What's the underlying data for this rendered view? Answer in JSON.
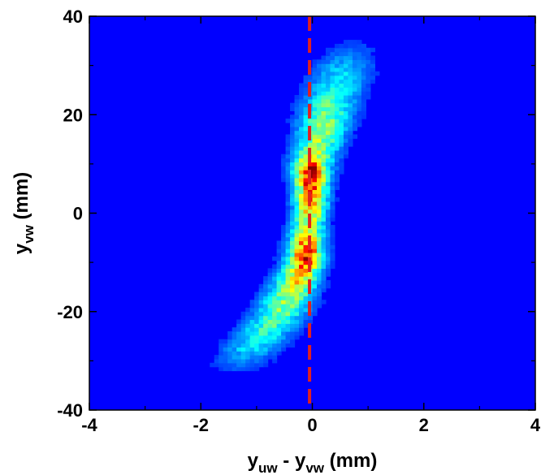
{
  "chart_data": {
    "type": "heatmap",
    "title": "",
    "xlabel": {
      "main": "y",
      "sub1": "uw",
      "mid": " - y",
      "sub2": "vw",
      "unit": " (mm)"
    },
    "ylabel": {
      "main": "y",
      "sub": "vw",
      "unit": " (mm)"
    },
    "xlim": [
      -4,
      4
    ],
    "ylim": [
      -40,
      40
    ],
    "x_ticks": [
      -4,
      -2,
      0,
      2,
      4
    ],
    "y_ticks": [
      -40,
      -20,
      0,
      20,
      40
    ],
    "x_tick_labels": [
      "-4",
      "-2",
      "0",
      "2",
      "4"
    ],
    "y_tick_labels": [
      "-40",
      "-20",
      "0",
      "20",
      "40"
    ],
    "grid": false,
    "colormap": "jet",
    "background_color": "#0000ff",
    "reference_line": {
      "x": -0.05,
      "style": "dashed",
      "color": "#e02020"
    },
    "distribution": {
      "ridge": [
        {
          "y": -32,
          "x": -1.4
        },
        {
          "y": -20,
          "x": -0.55
        },
        {
          "y": -10,
          "x": -0.15
        },
        {
          "y": 0,
          "x": -0.05
        },
        {
          "y": 10,
          "x": 0.0
        },
        {
          "y": 22,
          "x": 0.3
        },
        {
          "y": 34,
          "x": 0.7
        }
      ],
      "y_extent": [
        -33,
        36
      ],
      "hotspots": [
        {
          "x": -0.05,
          "y": 8,
          "level": 0.95
        },
        {
          "x": -0.1,
          "y": -8,
          "level": 0.85
        },
        {
          "x": 0.0,
          "y": 2,
          "level": 0.7
        },
        {
          "x": -0.2,
          "y": -13,
          "level": 0.6
        }
      ]
    }
  }
}
